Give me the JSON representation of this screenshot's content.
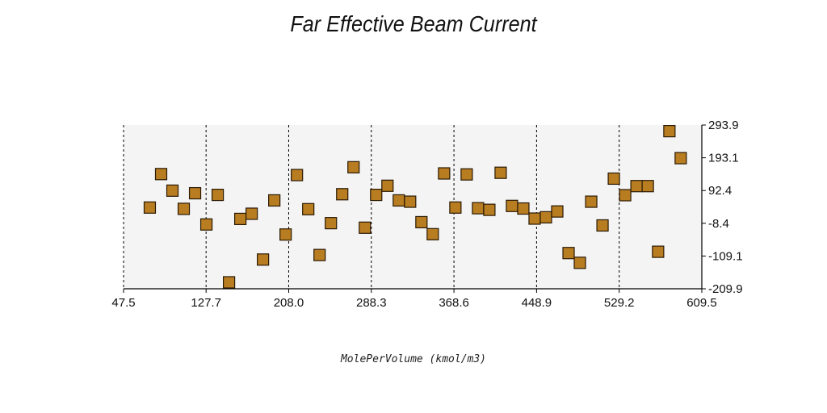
{
  "chart_data": {
    "type": "scatter",
    "title": "Far Effective Beam Current",
    "xlabel": "MolePerVolume (kmol/m3)",
    "ylabel": "",
    "xlim": [
      47.5,
      609.5
    ],
    "ylim": [
      -209.9,
      293.9
    ],
    "x_ticks": [
      "47.5",
      "127.7",
      "208.0",
      "288.3",
      "368.6",
      "448.9",
      "529.2",
      "609.5"
    ],
    "y_ticks": [
      "293.9",
      "193.1",
      "92.4",
      "-8.4",
      "-109.1",
      "-209.9"
    ],
    "x_tick_values": [
      47.5,
      127.7,
      208.0,
      288.3,
      368.6,
      448.9,
      529.2,
      609.5
    ],
    "y_tick_values": [
      293.9,
      193.1,
      92.4,
      -8.4,
      -109.1,
      -209.9
    ],
    "grid": "vertical dashed",
    "marker": "square",
    "colors": {
      "marker_fill": "#b87c21",
      "marker_edge": "#2a1a05",
      "plot_bg": "#f4f4f4"
    },
    "points": [
      {
        "x": 73,
        "y": 40
      },
      {
        "x": 84,
        "y": 143
      },
      {
        "x": 95,
        "y": 92
      },
      {
        "x": 106,
        "y": 36
      },
      {
        "x": 117,
        "y": 84
      },
      {
        "x": 128,
        "y": -12
      },
      {
        "x": 139,
        "y": 79
      },
      {
        "x": 150,
        "y": -190
      },
      {
        "x": 161,
        "y": 5
      },
      {
        "x": 172,
        "y": 21
      },
      {
        "x": 183,
        "y": -120
      },
      {
        "x": 194,
        "y": 62
      },
      {
        "x": 205,
        "y": -43
      },
      {
        "x": 216,
        "y": 140
      },
      {
        "x": 227,
        "y": 35
      },
      {
        "x": 238,
        "y": -106
      },
      {
        "x": 249,
        "y": -8
      },
      {
        "x": 260,
        "y": 81
      },
      {
        "x": 271,
        "y": 164
      },
      {
        "x": 282,
        "y": -22
      },
      {
        "x": 293,
        "y": 79
      },
      {
        "x": 304,
        "y": 107
      },
      {
        "x": 315,
        "y": 62
      },
      {
        "x": 326,
        "y": 58
      },
      {
        "x": 337,
        "y": -5
      },
      {
        "x": 348,
        "y": -42
      },
      {
        "x": 359,
        "y": 145
      },
      {
        "x": 370,
        "y": 40
      },
      {
        "x": 381,
        "y": 142
      },
      {
        "x": 392,
        "y": 38
      },
      {
        "x": 403,
        "y": 33
      },
      {
        "x": 414,
        "y": 147
      },
      {
        "x": 425,
        "y": 45
      },
      {
        "x": 436,
        "y": 37
      },
      {
        "x": 447,
        "y": 6
      },
      {
        "x": 458,
        "y": 10
      },
      {
        "x": 469,
        "y": 28
      },
      {
        "x": 480,
        "y": -100
      },
      {
        "x": 491,
        "y": -130
      },
      {
        "x": 502,
        "y": 58
      },
      {
        "x": 513,
        "y": -15
      },
      {
        "x": 524,
        "y": 129
      },
      {
        "x": 535,
        "y": 78
      },
      {
        "x": 546,
        "y": 106
      },
      {
        "x": 557,
        "y": 106
      },
      {
        "x": 567,
        "y": -96
      },
      {
        "x": 578,
        "y": 275
      },
      {
        "x": 589,
        "y": 192
      }
    ]
  }
}
